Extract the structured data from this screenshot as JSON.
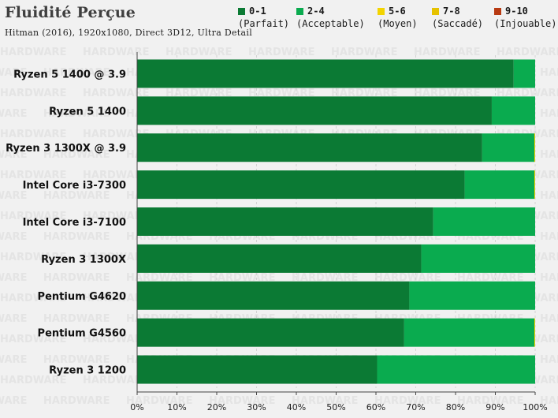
{
  "header": {
    "title": "Fluidité Perçue",
    "subtitle": "Hitman (2016), 1920x1080, Direct 3D12, Ultra Detail"
  },
  "legend": [
    {
      "range": "0-1",
      "label": "(Parfait)",
      "color": "#0b7a34"
    },
    {
      "range": "2-4",
      "label": "(Acceptable)",
      "color": "#0aab4f"
    },
    {
      "range": "5-6",
      "label": "(Moyen)",
      "color": "#f3d400"
    },
    {
      "range": "7-8",
      "label": "(Saccadé)",
      "color": "#e6c200"
    },
    {
      "range": "9-10",
      "label": "(Injouable)",
      "color": "#b83a12"
    }
  ],
  "watermark": "HARDWARE",
  "chart_data": {
    "type": "bar",
    "orientation": "horizontal",
    "stacked": true,
    "title": "Fluidité Perçue",
    "subtitle": "Hitman (2016), 1920x1080, Direct 3D12, Ultra Detail",
    "xlim": [
      0,
      100
    ],
    "x_ticks": [
      "0%",
      "10%",
      "20%",
      "30%",
      "40%",
      "50%",
      "60%",
      "70%",
      "80%",
      "90%",
      "100%"
    ],
    "categories": [
      "Ryzen 5 1400 @ 3.9",
      "Ryzen 5 1400",
      "Ryzen 3 1300X @ 3.9",
      "Intel Core i3-7300",
      "Intel Core i3-7100",
      "Ryzen 3 1300X",
      "Pentium G4620",
      "Pentium G4560",
      "Ryzen 3 1200"
    ],
    "series": [
      {
        "name": "0-1 (Parfait)",
        "color": "#0b7a34",
        "values": [
          94.6,
          89.1,
          86.7,
          82.3,
          74.4,
          71.4,
          68.4,
          67.1,
          60.3
        ]
      },
      {
        "name": "2-4 (Acceptable)",
        "color": "#0aab4f",
        "values": [
          5.4,
          10.9,
          13.1,
          17.5,
          25.6,
          28.6,
          31.6,
          32.7,
          39.7
        ]
      },
      {
        "name": "5-6 (Moyen)",
        "color": "#f3d400",
        "values": [
          0,
          0,
          0.2,
          0.2,
          0,
          0,
          0,
          0.2,
          0
        ]
      },
      {
        "name": "7-8 (Saccadé)",
        "color": "#e6c200",
        "values": [
          0,
          0,
          0,
          0,
          0,
          0,
          0,
          0,
          0
        ]
      },
      {
        "name": "9-10 (Injouable)",
        "color": "#b83a12",
        "values": [
          0,
          0,
          0,
          0,
          0,
          0,
          0,
          0,
          0
        ]
      }
    ],
    "grid": true,
    "legend_position": "top-right"
  }
}
